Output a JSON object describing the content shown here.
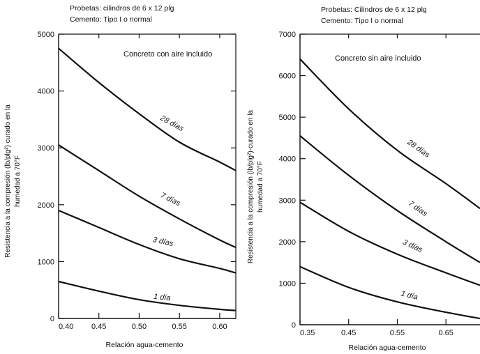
{
  "chart_data": [
    {
      "type": "line",
      "subtitle_lines": [
        "Probetas: cilindros de 6 x 12 plg",
        "Cemento: Tipo I o normal"
      ],
      "annotation": "Concreto con aire incluido",
      "xlabel": "Relación agua-cemento",
      "ylabel_lines": [
        "Resistencia a la compresión (lb/plg²) curado en la",
        "humedad a 70°F"
      ],
      "xlim": [
        0.4,
        0.62
      ],
      "ylim": [
        0,
        5000
      ],
      "xticks": [
        0.4,
        0.45,
        0.5,
        0.55,
        0.6
      ],
      "xtick_labels": [
        "0.40",
        "0.45",
        "0.50",
        "0.55",
        "0.60"
      ],
      "yticks": [
        0,
        1000,
        2000,
        3000,
        4000,
        5000
      ],
      "ytick_labels": [
        "0",
        "1000",
        "2000",
        "3000",
        "4000",
        "5000"
      ],
      "series": [
        {
          "label": "28 días",
          "x": [
            0.4,
            0.45,
            0.5,
            0.55,
            0.6,
            0.62
          ],
          "y": [
            4750,
            4150,
            3600,
            3100,
            2750,
            2600
          ]
        },
        {
          "label": "7 días",
          "x": [
            0.4,
            0.45,
            0.5,
            0.55,
            0.6,
            0.62
          ],
          "y": [
            3050,
            2600,
            2150,
            1750,
            1380,
            1250
          ]
        },
        {
          "label": "3 días",
          "x": [
            0.4,
            0.45,
            0.5,
            0.55,
            0.6,
            0.62
          ],
          "y": [
            1900,
            1600,
            1300,
            1050,
            880,
            800
          ]
        },
        {
          "label": "1 día",
          "x": [
            0.4,
            0.45,
            0.5,
            0.55,
            0.6,
            0.62
          ],
          "y": [
            650,
            480,
            330,
            230,
            160,
            140
          ]
        }
      ]
    },
    {
      "type": "line",
      "subtitle_lines": [
        "Probetas: Cilindros de 6 x 12 plg",
        "Cemento: Tipo I o normal"
      ],
      "annotation": "Concreto sin aire incluido",
      "xlabel": "Relación agua-cemento",
      "ylabel_lines": [
        "Resistencia a la compresión (lb/plg²)-curado en la",
        "humedad a 70°F"
      ],
      "xlim": [
        0.35,
        0.72
      ],
      "ylim": [
        0,
        7000
      ],
      "xticks": [
        0.35,
        0.45,
        0.55,
        0.65
      ],
      "xtick_labels": [
        "0.35",
        "0.45",
        "0.55",
        "0.65"
      ],
      "yticks": [
        0,
        1000,
        2000,
        3000,
        4000,
        5000,
        6000,
        7000
      ],
      "ytick_labels": [
        "0",
        "1000",
        "2000",
        "3000",
        "4000",
        "5000",
        "6000",
        "7000"
      ],
      "series": [
        {
          "label": "28 días",
          "x": [
            0.35,
            0.45,
            0.55,
            0.65,
            0.72
          ],
          "y": [
            6400,
            5200,
            4200,
            3400,
            2800
          ]
        },
        {
          "label": "7 días",
          "x": [
            0.35,
            0.45,
            0.55,
            0.65,
            0.72
          ],
          "y": [
            4550,
            3600,
            2750,
            2000,
            1500
          ]
        },
        {
          "label": "3 días",
          "x": [
            0.35,
            0.45,
            0.55,
            0.65,
            0.72
          ],
          "y": [
            2950,
            2250,
            1700,
            1250,
            950
          ]
        },
        {
          "label": "1 día",
          "x": [
            0.35,
            0.45,
            0.55,
            0.65,
            0.72
          ],
          "y": [
            1400,
            900,
            550,
            300,
            150
          ]
        }
      ]
    }
  ]
}
